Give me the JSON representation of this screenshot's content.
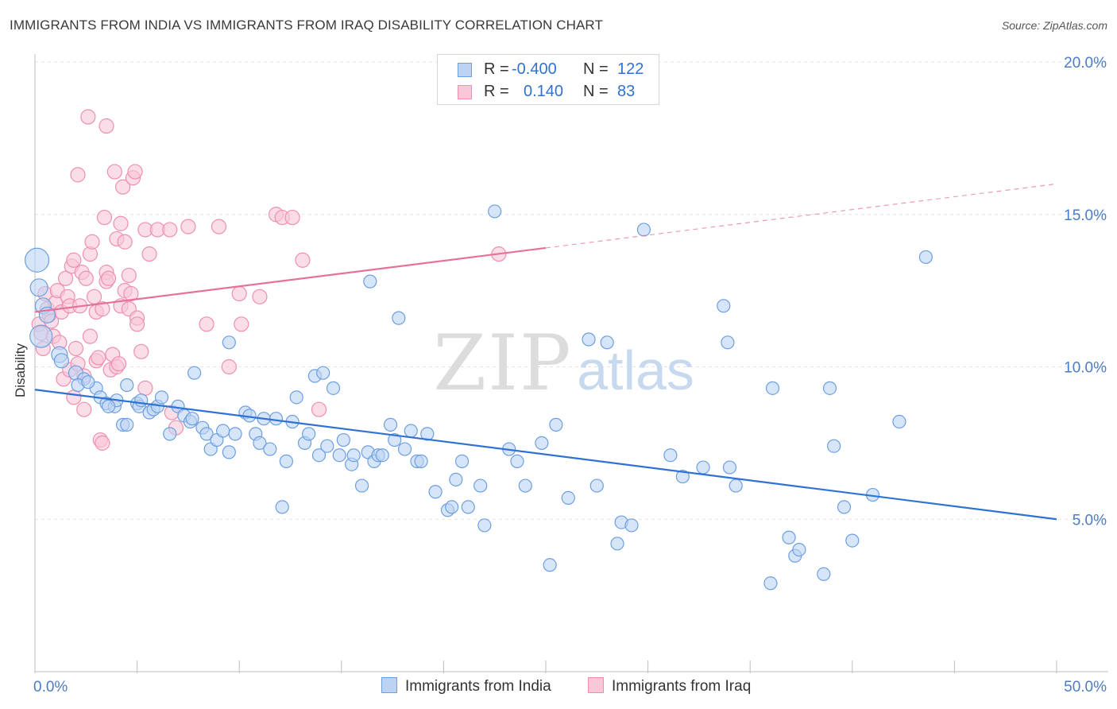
{
  "title": "IMMIGRANTS FROM INDIA VS IMMIGRANTS FROM IRAQ DISABILITY CORRELATION CHART",
  "source": "Source: ZipAtlas.com",
  "watermark": {
    "zip": "ZIP",
    "atlas": "atlas"
  },
  "colors": {
    "india": "#6c9fe0",
    "india_fill": "#bcd3f3",
    "india_line": "#2f72d4",
    "iraq": "#ee8fb0",
    "iraq_fill": "#f8c6d7",
    "iraq_line": "#e5719a",
    "tick_text": "#4a7cc7",
    "grid": "#e3e3e3"
  },
  "legend": {
    "india": {
      "r_label": "R =",
      "r_value": "-0.400",
      "n_label": "N =",
      "n_value": "122"
    },
    "iraq": {
      "r_label": "R =",
      "r_value": "0.140",
      "n_label": "N =",
      "n_value": "83"
    }
  },
  "chart_data": {
    "type": "scatter",
    "title": "IMMIGRANTS FROM INDIA VS IMMIGRANTS FROM IRAQ DISABILITY CORRELATION CHART",
    "xlabel": "",
    "ylabel": "Disability",
    "xlim": [
      0,
      50
    ],
    "ylim": [
      0,
      20
    ],
    "x_tick_labels": [
      "0.0%",
      "50.0%"
    ],
    "y_ticks": [
      5,
      10,
      15,
      20
    ],
    "y_tick_labels": [
      "5.0%",
      "10.0%",
      "15.0%",
      "20.0%"
    ],
    "grid": true,
    "legend_position": "top-center",
    "series": [
      {
        "name": "Immigrants from India",
        "r": -0.4,
        "n": 122,
        "trend": {
          "x": [
            0,
            50
          ],
          "y": [
            9.25,
            5.0
          ]
        },
        "points": [
          [
            0.1,
            13.5,
            15
          ],
          [
            0.2,
            12.6,
            11
          ],
          [
            0.4,
            12.0,
            10
          ],
          [
            0.6,
            11.7,
            10
          ],
          [
            0.3,
            11.0,
            14
          ],
          [
            1.2,
            10.4,
            10
          ],
          [
            1.3,
            10.2,
            9
          ],
          [
            2.0,
            9.8,
            9
          ],
          [
            2.4,
            9.6,
            8
          ],
          [
            2.1,
            9.4,
            8
          ],
          [
            3.0,
            9.3,
            8
          ],
          [
            3.2,
            9.0,
            8
          ],
          [
            3.5,
            8.8,
            8
          ],
          [
            3.9,
            8.7,
            8
          ],
          [
            4.0,
            8.9,
            8
          ],
          [
            4.3,
            8.1,
            8
          ],
          [
            4.5,
            8.1,
            8
          ],
          [
            4.5,
            9.4,
            8
          ],
          [
            5.0,
            8.8,
            8
          ],
          [
            5.1,
            8.7,
            8
          ],
          [
            5.2,
            8.9,
            8
          ],
          [
            5.6,
            8.5,
            8
          ],
          [
            5.8,
            8.6,
            8
          ],
          [
            6.0,
            8.7,
            8
          ],
          [
            6.2,
            9.0,
            8
          ],
          [
            6.6,
            7.8,
            8
          ],
          [
            7.0,
            8.7,
            8
          ],
          [
            7.3,
            8.4,
            8
          ],
          [
            7.6,
            8.2,
            8
          ],
          [
            7.7,
            8.3,
            8
          ],
          [
            7.8,
            9.8,
            8
          ],
          [
            8.2,
            8.0,
            8
          ],
          [
            8.4,
            7.8,
            8
          ],
          [
            8.6,
            7.3,
            8
          ],
          [
            8.9,
            7.6,
            8
          ],
          [
            9.2,
            7.9,
            8
          ],
          [
            9.5,
            7.2,
            8
          ],
          [
            9.5,
            10.8,
            8
          ],
          [
            9.8,
            7.8,
            8
          ],
          [
            10.3,
            8.5,
            8
          ],
          [
            10.5,
            8.4,
            8
          ],
          [
            10.8,
            7.8,
            8
          ],
          [
            11.0,
            7.5,
            8
          ],
          [
            11.2,
            8.3,
            8
          ],
          [
            11.5,
            7.3,
            8
          ],
          [
            11.8,
            8.3,
            8
          ],
          [
            12.1,
            5.4,
            8
          ],
          [
            12.3,
            6.9,
            8
          ],
          [
            12.6,
            8.2,
            8
          ],
          [
            12.8,
            9.0,
            8
          ],
          [
            13.2,
            7.5,
            8
          ],
          [
            13.4,
            7.8,
            8
          ],
          [
            13.7,
            9.7,
            8
          ],
          [
            13.9,
            7.1,
            8
          ],
          [
            14.1,
            9.8,
            8
          ],
          [
            14.3,
            7.4,
            8
          ],
          [
            14.6,
            9.3,
            8
          ],
          [
            14.9,
            7.1,
            8
          ],
          [
            15.1,
            7.6,
            8
          ],
          [
            15.5,
            6.8,
            8
          ],
          [
            15.6,
            7.1,
            8
          ],
          [
            16.0,
            6.1,
            8
          ],
          [
            16.3,
            7.2,
            8
          ],
          [
            16.4,
            12.8,
            8
          ],
          [
            16.6,
            6.9,
            8
          ],
          [
            16.8,
            7.1,
            8
          ],
          [
            17.0,
            7.1,
            8
          ],
          [
            17.4,
            8.1,
            8
          ],
          [
            17.6,
            7.6,
            8
          ],
          [
            17.8,
            11.6,
            8
          ],
          [
            18.1,
            7.3,
            8
          ],
          [
            18.4,
            7.9,
            8
          ],
          [
            18.7,
            6.9,
            8
          ],
          [
            18.9,
            6.9,
            8
          ],
          [
            19.2,
            7.8,
            8
          ],
          [
            19.6,
            5.9,
            8
          ],
          [
            20.2,
            5.3,
            8
          ],
          [
            20.4,
            5.4,
            8
          ],
          [
            20.6,
            6.3,
            8
          ],
          [
            20.9,
            6.9,
            8
          ],
          [
            21.2,
            5.4,
            8
          ],
          [
            21.8,
            6.1,
            8
          ],
          [
            22.0,
            4.8,
            8
          ],
          [
            22.5,
            15.1,
            8
          ],
          [
            23.2,
            7.3,
            8
          ],
          [
            23.6,
            6.9,
            8
          ],
          [
            24.0,
            6.1,
            8
          ],
          [
            24.8,
            7.5,
            8
          ],
          [
            25.2,
            3.5,
            8
          ],
          [
            25.5,
            8.1,
            8
          ],
          [
            26.1,
            5.7,
            8
          ],
          [
            27.1,
            10.9,
            8
          ],
          [
            27.5,
            6.1,
            8
          ],
          [
            28.0,
            10.8,
            8
          ],
          [
            28.5,
            4.2,
            8
          ],
          [
            28.7,
            4.9,
            8
          ],
          [
            29.2,
            4.8,
            8
          ],
          [
            29.8,
            14.5,
            8
          ],
          [
            31.1,
            7.1,
            8
          ],
          [
            31.7,
            6.4,
            8
          ],
          [
            32.7,
            6.7,
            8
          ],
          [
            33.7,
            12.0,
            8
          ],
          [
            33.9,
            10.8,
            8
          ],
          [
            34.0,
            6.7,
            8
          ],
          [
            34.3,
            6.1,
            8
          ],
          [
            36.0,
            2.9,
            8
          ],
          [
            36.1,
            9.3,
            8
          ],
          [
            36.9,
            4.4,
            8
          ],
          [
            37.2,
            3.8,
            8
          ],
          [
            37.4,
            4.0,
            8
          ],
          [
            38.6,
            3.2,
            8
          ],
          [
            38.9,
            9.3,
            8
          ],
          [
            39.1,
            7.4,
            8
          ],
          [
            39.6,
            5.4,
            8
          ],
          [
            40.0,
            4.3,
            8
          ],
          [
            41.0,
            5.8,
            8
          ],
          [
            42.3,
            8.2,
            8
          ],
          [
            43.6,
            13.6,
            8
          ],
          [
            2.6,
            9.5,
            8
          ],
          [
            3.6,
            8.7,
            8
          ]
        ]
      },
      {
        "name": "Immigrants from Iraq",
        "r": 0.14,
        "n": 83,
        "trend": {
          "x": [
            0,
            25
          ],
          "y": [
            11.8,
            13.9
          ]
        },
        "trend_dashed": {
          "x": [
            25,
            50
          ],
          "y": [
            13.9,
            16.0
          ]
        },
        "points": [
          [
            0.2,
            11.4,
            9
          ],
          [
            0.3,
            11.1,
            9
          ],
          [
            0.4,
            10.6,
            9
          ],
          [
            0.5,
            12.4,
            9
          ],
          [
            0.6,
            11.9,
            9
          ],
          [
            0.7,
            11.7,
            9
          ],
          [
            0.8,
            11.5,
            9
          ],
          [
            0.9,
            11.0,
            9
          ],
          [
            1.0,
            12.1,
            9
          ],
          [
            1.1,
            12.5,
            9
          ],
          [
            1.2,
            10.8,
            9
          ],
          [
            1.3,
            11.8,
            9
          ],
          [
            1.4,
            9.6,
            9
          ],
          [
            1.5,
            12.9,
            9
          ],
          [
            1.6,
            12.3,
            9
          ],
          [
            1.7,
            12.0,
            9
          ],
          [
            1.7,
            9.9,
            9
          ],
          [
            1.8,
            13.3,
            9
          ],
          [
            1.9,
            13.5,
            9
          ],
          [
            1.9,
            9.0,
            9
          ],
          [
            2.0,
            10.6,
            9
          ],
          [
            2.1,
            16.3,
            9
          ],
          [
            2.1,
            10.1,
            9
          ],
          [
            2.2,
            12.0,
            9
          ],
          [
            2.3,
            13.1,
            9
          ],
          [
            2.4,
            9.7,
            9
          ],
          [
            2.4,
            8.6,
            9
          ],
          [
            2.5,
            12.9,
            9
          ],
          [
            2.6,
            18.2,
            9
          ],
          [
            2.7,
            11.0,
            9
          ],
          [
            2.7,
            13.7,
            9
          ],
          [
            2.8,
            14.1,
            9
          ],
          [
            2.9,
            12.3,
            9
          ],
          [
            3.0,
            11.8,
            9
          ],
          [
            3.0,
            10.2,
            9
          ],
          [
            3.1,
            10.3,
            9
          ],
          [
            3.2,
            7.6,
            9
          ],
          [
            3.3,
            7.5,
            9
          ],
          [
            3.3,
            11.9,
            9
          ],
          [
            3.4,
            14.9,
            9
          ],
          [
            3.5,
            13.1,
            9
          ],
          [
            3.5,
            12.8,
            9
          ],
          [
            3.5,
            17.9,
            9
          ],
          [
            3.6,
            12.9,
            9
          ],
          [
            3.7,
            9.9,
            9
          ],
          [
            3.8,
            10.4,
            9
          ],
          [
            3.9,
            16.4,
            9
          ],
          [
            4.0,
            10.0,
            9
          ],
          [
            4.0,
            14.2,
            9
          ],
          [
            4.1,
            10.1,
            9
          ],
          [
            4.2,
            14.7,
            9
          ],
          [
            4.2,
            12.0,
            9
          ],
          [
            4.3,
            15.9,
            9
          ],
          [
            4.4,
            12.5,
            9
          ],
          [
            4.4,
            14.1,
            9
          ],
          [
            4.6,
            11.9,
            9
          ],
          [
            4.6,
            13.0,
            9
          ],
          [
            4.7,
            12.4,
            9
          ],
          [
            4.8,
            16.2,
            9
          ],
          [
            4.9,
            16.4,
            9
          ],
          [
            5.0,
            11.6,
            9
          ],
          [
            5.0,
            11.4,
            9
          ],
          [
            5.2,
            10.5,
            9
          ],
          [
            5.4,
            9.3,
            9
          ],
          [
            5.4,
            14.5,
            9
          ],
          [
            5.6,
            13.7,
            9
          ],
          [
            6.0,
            14.5,
            9
          ],
          [
            6.6,
            14.5,
            9
          ],
          [
            6.7,
            8.5,
            9
          ],
          [
            6.9,
            8.0,
            9
          ],
          [
            7.5,
            14.6,
            9
          ],
          [
            8.4,
            11.4,
            9
          ],
          [
            9.0,
            14.6,
            9
          ],
          [
            9.5,
            10.0,
            9
          ],
          [
            10.0,
            12.4,
            9
          ],
          [
            10.1,
            11.4,
            9
          ],
          [
            11.0,
            12.3,
            9
          ],
          [
            11.8,
            15.0,
            9
          ],
          [
            12.1,
            14.9,
            9
          ],
          [
            12.6,
            14.9,
            9
          ],
          [
            13.1,
            13.5,
            9
          ],
          [
            13.9,
            8.6,
            9
          ],
          [
            22.7,
            13.7,
            9
          ]
        ]
      }
    ]
  },
  "bottom_legend": [
    "Immigrants from India",
    "Immigrants from Iraq"
  ]
}
